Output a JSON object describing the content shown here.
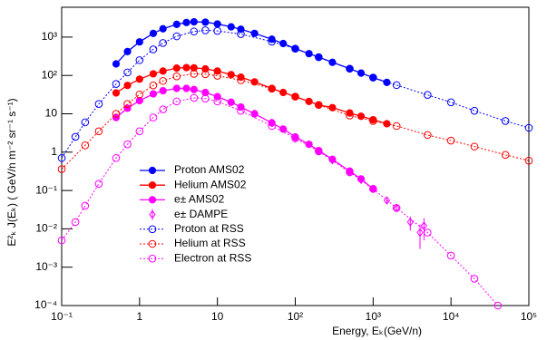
{
  "chart_data": {
    "type": "scatter",
    "x_label": "Energy, Eₖ(GeV/n)",
    "y_label": "E²ₖ J(Eₖ) ( GeV/n m⁻² sr⁻¹ s⁻¹)",
    "xscale": "log",
    "yscale": "log",
    "xlim": [
      0.1,
      100000
    ],
    "ylim": [
      0.0001,
      6000
    ],
    "xticks": [
      {
        "value": 0.1,
        "label": "10⁻¹"
      },
      1,
      10,
      {
        "value": 100,
        "label": "10²"
      },
      {
        "value": 1000,
        "label": "10³"
      },
      {
        "value": 10000,
        "label": "10⁴"
      },
      {
        "value": 100000,
        "label": "10⁵"
      }
    ],
    "yticks": [
      {
        "value": 0.0001,
        "label": "10⁻⁴"
      },
      {
        "value": 0.001,
        "label": "10⁻³"
      },
      {
        "value": 0.01,
        "label": "10⁻²"
      },
      {
        "value": 0.1,
        "label": "10⁻¹"
      },
      1,
      10,
      {
        "value": 100,
        "label": "10²"
      },
      {
        "value": 1000,
        "label": "10³"
      }
    ],
    "legend": "left",
    "series": [
      {
        "name": "Proton AMS02",
        "color": "#0000ff",
        "marker": "filled-circle",
        "line": "solid",
        "x": [
          0.5,
          0.7,
          1,
          1.5,
          2,
          3,
          4,
          5,
          7,
          10,
          15,
          20,
          30,
          50,
          70,
          100,
          150,
          200,
          300,
          500,
          700,
          1000,
          1500
        ],
        "values": [
          200,
          420,
          750,
          1250,
          1650,
          2150,
          2400,
          2500,
          2450,
          2200,
          1850,
          1600,
          1250,
          880,
          680,
          500,
          370,
          300,
          220,
          150,
          115,
          88,
          66
        ]
      },
      {
        "name": "Helium AMS02",
        "color": "#ff0000",
        "marker": "filled-circle",
        "line": "solid",
        "x": [
          0.5,
          0.7,
          1,
          1.5,
          2,
          3,
          4,
          5,
          7,
          10,
          15,
          20,
          30,
          50,
          70,
          100,
          150,
          200,
          300,
          500,
          700,
          1000,
          1500
        ],
        "values": [
          35,
          55,
          80,
          110,
          130,
          155,
          160,
          158,
          148,
          130,
          105,
          90,
          68,
          46,
          36,
          28,
          21,
          17,
          14.5,
          10.5,
          8.6,
          7,
          5.5
        ]
      },
      {
        "name": "e± AMS02",
        "color": "#ff00ff",
        "marker": "filled-circle",
        "line": "solid",
        "x": [
          0.5,
          0.7,
          1,
          1.5,
          2,
          3,
          4,
          5,
          7,
          10,
          15,
          20,
          30,
          50,
          70,
          100,
          150,
          200,
          300,
          500,
          700,
          1000
        ],
        "values": [
          8,
          14,
          22,
          33,
          40,
          46,
          46,
          43,
          36,
          28,
          20,
          15,
          10,
          5.8,
          4,
          2.5,
          1.6,
          1.1,
          0.65,
          0.32,
          0.2,
          0.11
        ]
      },
      {
        "name": "e± DAMPE",
        "color": "#ff00ff",
        "marker": "diamond",
        "line": "none",
        "x": [
          30,
          50,
          100,
          200,
          300,
          500,
          700,
          1000,
          1500,
          2000,
          3000,
          4000,
          4500
        ],
        "values": [
          10,
          5.8,
          2.3,
          1.05,
          0.62,
          0.3,
          0.19,
          0.11,
          0.055,
          0.035,
          0.015,
          0.008,
          0.012
        ],
        "errors": [
          0.3,
          0.2,
          0.08,
          0.04,
          0.03,
          0.02,
          0.015,
          0.01,
          0.008,
          0.007,
          0.006,
          0.005,
          0.007
        ]
      },
      {
        "name": "Proton at RSS",
        "color": "#0000ff",
        "marker": "open-circle",
        "line": "dotted",
        "x": [
          0.1,
          0.15,
          0.2,
          0.3,
          0.5,
          0.7,
          1,
          1.5,
          2,
          3,
          5,
          7,
          10,
          20,
          50,
          100,
          200,
          500,
          1000,
          2000,
          5000,
          10000,
          20000,
          50000,
          100000
        ],
        "values": [
          0.7,
          2.5,
          6,
          18,
          60,
          120,
          250,
          480,
          700,
          1050,
          1400,
          1500,
          1450,
          1200,
          760,
          500,
          300,
          150,
          88,
          56,
          31,
          20,
          12,
          6.5,
          4.3
        ]
      },
      {
        "name": "Helium at RSS",
        "color": "#ff0000",
        "marker": "open-circle",
        "line": "dotted",
        "x": [
          0.1,
          0.2,
          0.3,
          0.5,
          0.7,
          1,
          1.5,
          2,
          3,
          5,
          7,
          10,
          20,
          50,
          100,
          200,
          500,
          1000,
          2000,
          5000,
          10000,
          20000,
          50000,
          100000
        ],
        "values": [
          0.36,
          1.5,
          3.5,
          10,
          18,
          32,
          55,
          72,
          95,
          110,
          108,
          98,
          75,
          45,
          28,
          17,
          9,
          6.5,
          4.8,
          2.8,
          2,
          1.4,
          0.85,
          0.6
        ]
      },
      {
        "name": "Electron at RSS",
        "color": "#ff00ff",
        "marker": "open-circle",
        "line": "dotted",
        "x": [
          0.1,
          0.15,
          0.2,
          0.3,
          0.5,
          0.7,
          1,
          1.5,
          2,
          3,
          5,
          7,
          10,
          20,
          50,
          100,
          200,
          500,
          1000,
          2000,
          5000,
          10000,
          20000,
          40000
        ],
        "values": [
          0.005,
          0.015,
          0.04,
          0.15,
          0.7,
          1.6,
          3.5,
          8,
          13,
          21,
          26,
          25,
          21,
          12,
          4.8,
          2.3,
          1.05,
          0.3,
          0.11,
          0.035,
          0.008,
          0.002,
          0.0005,
          0.0001
        ]
      }
    ]
  }
}
